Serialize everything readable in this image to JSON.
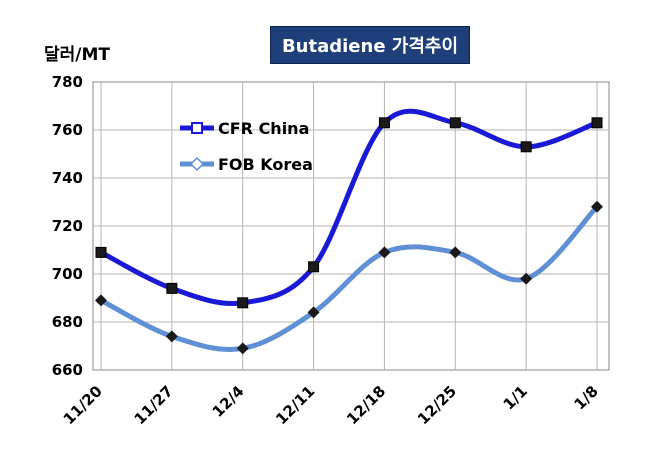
{
  "chart_data": {
    "type": "line",
    "title": "Butadiene 가격추이",
    "ylabel": "달러/MT",
    "xlabel": "",
    "categories": [
      "11/20",
      "11/27",
      "12/4",
      "12/11",
      "12/18",
      "12/25",
      "1/1",
      "1/8"
    ],
    "ylim": [
      660,
      780
    ],
    "yticks": [
      660,
      680,
      700,
      720,
      740,
      760,
      780
    ],
    "grid": "vertical and horizontal",
    "legend_position": "upper-left",
    "series": [
      {
        "name": "CFR China",
        "values": [
          709,
          694,
          688,
          703,
          763,
          763,
          753,
          763
        ],
        "color": "#1a1ad6",
        "marker": "square"
      },
      {
        "name": "FOB Korea",
        "values": [
          689,
          674,
          669,
          684,
          709,
          709,
          698,
          728
        ],
        "color": "#5f8fd4",
        "marker": "diamond"
      }
    ]
  }
}
